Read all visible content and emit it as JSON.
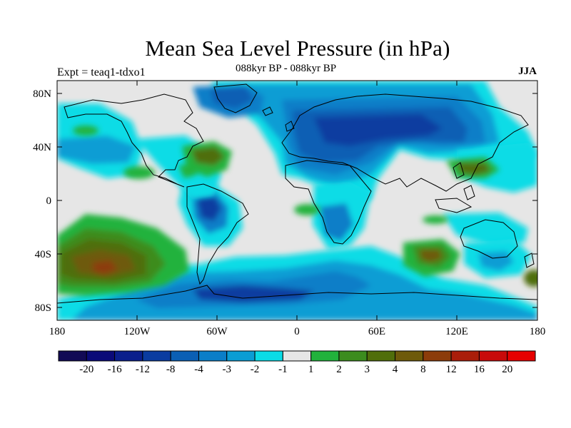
{
  "title": "Mean Sea Level Pressure (in hPa)",
  "left_label": "Expt = teaq1-tdxo1",
  "center_label": "088kyr BP - 088kyr BP",
  "right_label": "JJA",
  "lat_labels": [
    "80N",
    "40N",
    "0",
    "40S",
    "80S"
  ],
  "lon_labels": [
    "180",
    "120W",
    "60W",
    "0",
    "60E",
    "120E",
    "180"
  ],
  "colorbar": {
    "labels": [
      "-20",
      "-16",
      "-12",
      "-8",
      "-4",
      "-3",
      "-2",
      "-1",
      "1",
      "2",
      "3",
      "4",
      "8",
      "12",
      "16",
      "20"
    ],
    "colors": [
      "#120a55",
      "#0a0a78",
      "#0a1f8c",
      "#0a3ca0",
      "#0a5fb4",
      "#0a7ec8",
      "#0a9dd4",
      "#0adce6",
      "#e6e6e6",
      "#22b23c",
      "#3c8c1e",
      "#506e0a",
      "#6e5a0a",
      "#8c3c0a",
      "#aa1e0a",
      "#c80a0a",
      "#e60000"
    ]
  },
  "legend_colors": {
    "neg1": "#0adce6",
    "neg2": "#0a9dd4",
    "neg3": "#0a7ec8",
    "neg4": "#0a5fb4",
    "neg8": "#0a3ca0",
    "pos1": "#22b23c",
    "pos2": "#3c8c1e",
    "pos3": "#506e0a",
    "pos4": "#6e5a0a",
    "pos8": "#8c3c0a",
    "neutral": "#e6e6e6"
  }
}
